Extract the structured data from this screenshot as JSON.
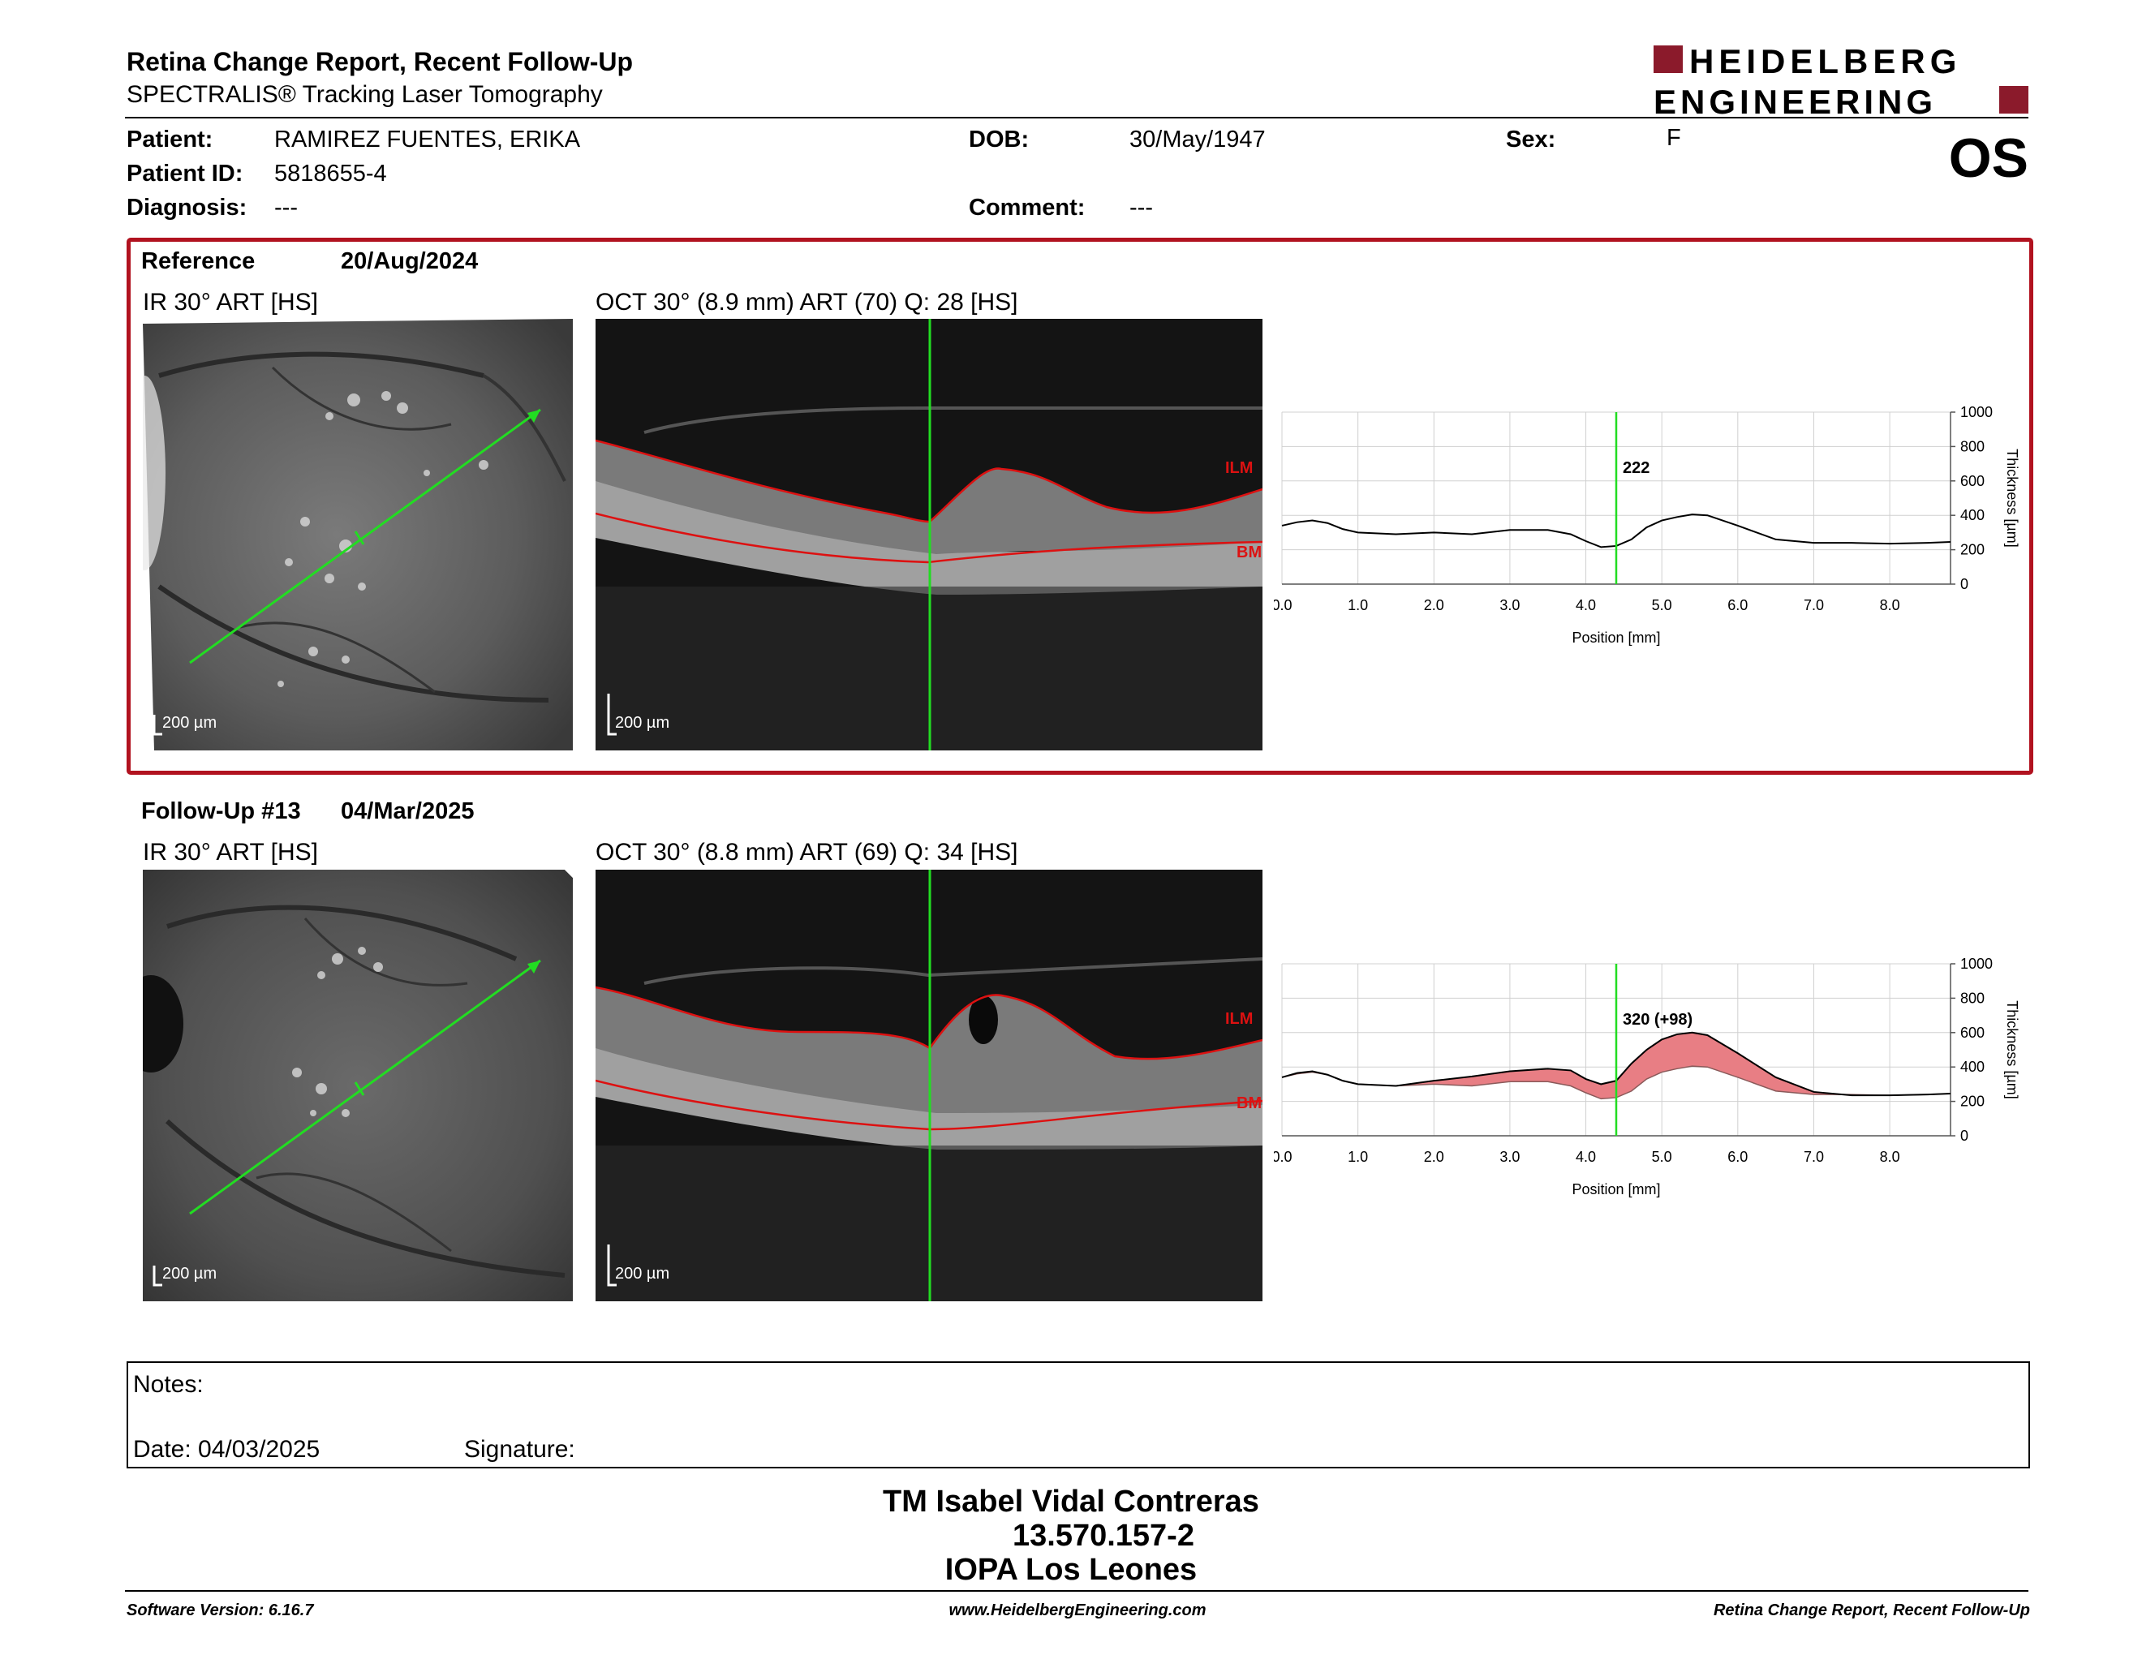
{
  "header": {
    "title": "Retina Change Report, Recent Follow-Up",
    "subtitle": "SPECTRALIS® Tracking Laser Tomography",
    "logo_line1": "HEIDELBERG",
    "logo_line2": "ENGINEERING",
    "brand_color": "#8b1a2b"
  },
  "patient": {
    "patient_label": "Patient:",
    "patient_name": "RAMIREZ FUENTES, ERIKA",
    "id_label": "Patient ID:",
    "id_value": "5818655-4",
    "diagnosis_label": "Diagnosis:",
    "diagnosis_value": "---",
    "dob_label": "DOB:",
    "dob_value": "30/May/1947",
    "comment_label": "Comment:",
    "comment_value": "---",
    "sex_label": "Sex:",
    "sex_value": "F",
    "eye": "OS"
  },
  "reference": {
    "label": "Reference",
    "date": "20/Aug/2024",
    "ir_title": "IR 30° ART [HS]",
    "oct_title": "OCT 30° (8.9 mm) ART (70) Q: 28 [HS]",
    "scale_ir": "200 µm",
    "scale_oct": "200 µm",
    "ilm": "ILM",
    "bm": "BM"
  },
  "followup": {
    "label": "Follow-Up #13",
    "date": "04/Mar/2025",
    "ir_title": "IR 30° ART [HS]",
    "oct_title": "OCT 30° (8.8 mm) ART (69) Q: 34 [HS]",
    "scale_ir": "200 µm",
    "scale_oct": "200 µm",
    "ilm": "ILM",
    "bm": "BM"
  },
  "chart_data": [
    {
      "type": "line",
      "xlabel": "Position [mm]",
      "ylabel": "Thickness [µm]",
      "xlim": [
        0,
        8.8
      ],
      "ylim": [
        0,
        1000
      ],
      "x_ticks": [
        "0.0",
        "1.0",
        "2.0",
        "3.0",
        "4.0",
        "5.0",
        "6.0",
        "7.0",
        "8.0"
      ],
      "y_ticks": [
        "0",
        "200",
        "400",
        "600",
        "800",
        "1000"
      ],
      "marker_x": 4.4,
      "marker_label": "222",
      "series": [
        {
          "x": [
            0,
            0.2,
            0.4,
            0.6,
            0.8,
            1.0,
            1.5,
            2.0,
            2.5,
            3.0,
            3.5,
            3.8,
            4.0,
            4.2,
            4.4,
            4.6,
            4.8,
            5.0,
            5.2,
            5.4,
            5.6,
            6.0,
            6.5,
            7.0,
            7.5,
            8.0,
            8.5,
            8.8
          ],
          "values": [
            340,
            360,
            370,
            355,
            320,
            300,
            290,
            300,
            290,
            315,
            315,
            290,
            250,
            215,
            222,
            260,
            330,
            370,
            390,
            405,
            400,
            340,
            260,
            240,
            240,
            235,
            240,
            245
          ]
        }
      ]
    },
    {
      "type": "area",
      "xlabel": "Position [mm]",
      "ylabel": "Thickness [µm]",
      "xlim": [
        0,
        8.8
      ],
      "ylim": [
        0,
        1000
      ],
      "x_ticks": [
        "0.0",
        "1.0",
        "2.0",
        "3.0",
        "4.0",
        "5.0",
        "6.0",
        "7.0",
        "8.0"
      ],
      "y_ticks": [
        "0",
        "200",
        "400",
        "600",
        "800",
        "1000"
      ],
      "marker_x": 4.4,
      "marker_label": "320 (+98)",
      "series": [
        {
          "x": [
            0,
            0.2,
            0.4,
            0.6,
            0.8,
            1.0,
            1.5,
            2.0,
            2.5,
            3.0,
            3.5,
            3.8,
            4.0,
            4.2,
            4.4,
            4.6,
            4.8,
            5.0,
            5.2,
            5.4,
            5.6,
            6.0,
            6.5,
            7.0,
            7.5,
            8.0,
            8.5,
            8.8
          ],
          "values": [
            340,
            365,
            375,
            355,
            320,
            300,
            290,
            320,
            345,
            375,
            390,
            380,
            330,
            300,
            320,
            420,
            500,
            560,
            590,
            600,
            585,
            480,
            340,
            255,
            235,
            235,
            240,
            245
          ]
        }
      ]
    }
  ],
  "notes": {
    "notes_label": "Notes:",
    "date_label": "Date: 04/03/2025",
    "signature_label": "Signature:"
  },
  "signature_block": {
    "line1": "TM Isabel Vidal Contreras",
    "line2": "13.570.157-2",
    "line3": "IOPA Los Leones"
  },
  "footer": {
    "version": "Software Version: 6.16.7",
    "url": "www.HeidelbergEngineering.com",
    "report": "Retina Change Report, Recent Follow-Up"
  }
}
